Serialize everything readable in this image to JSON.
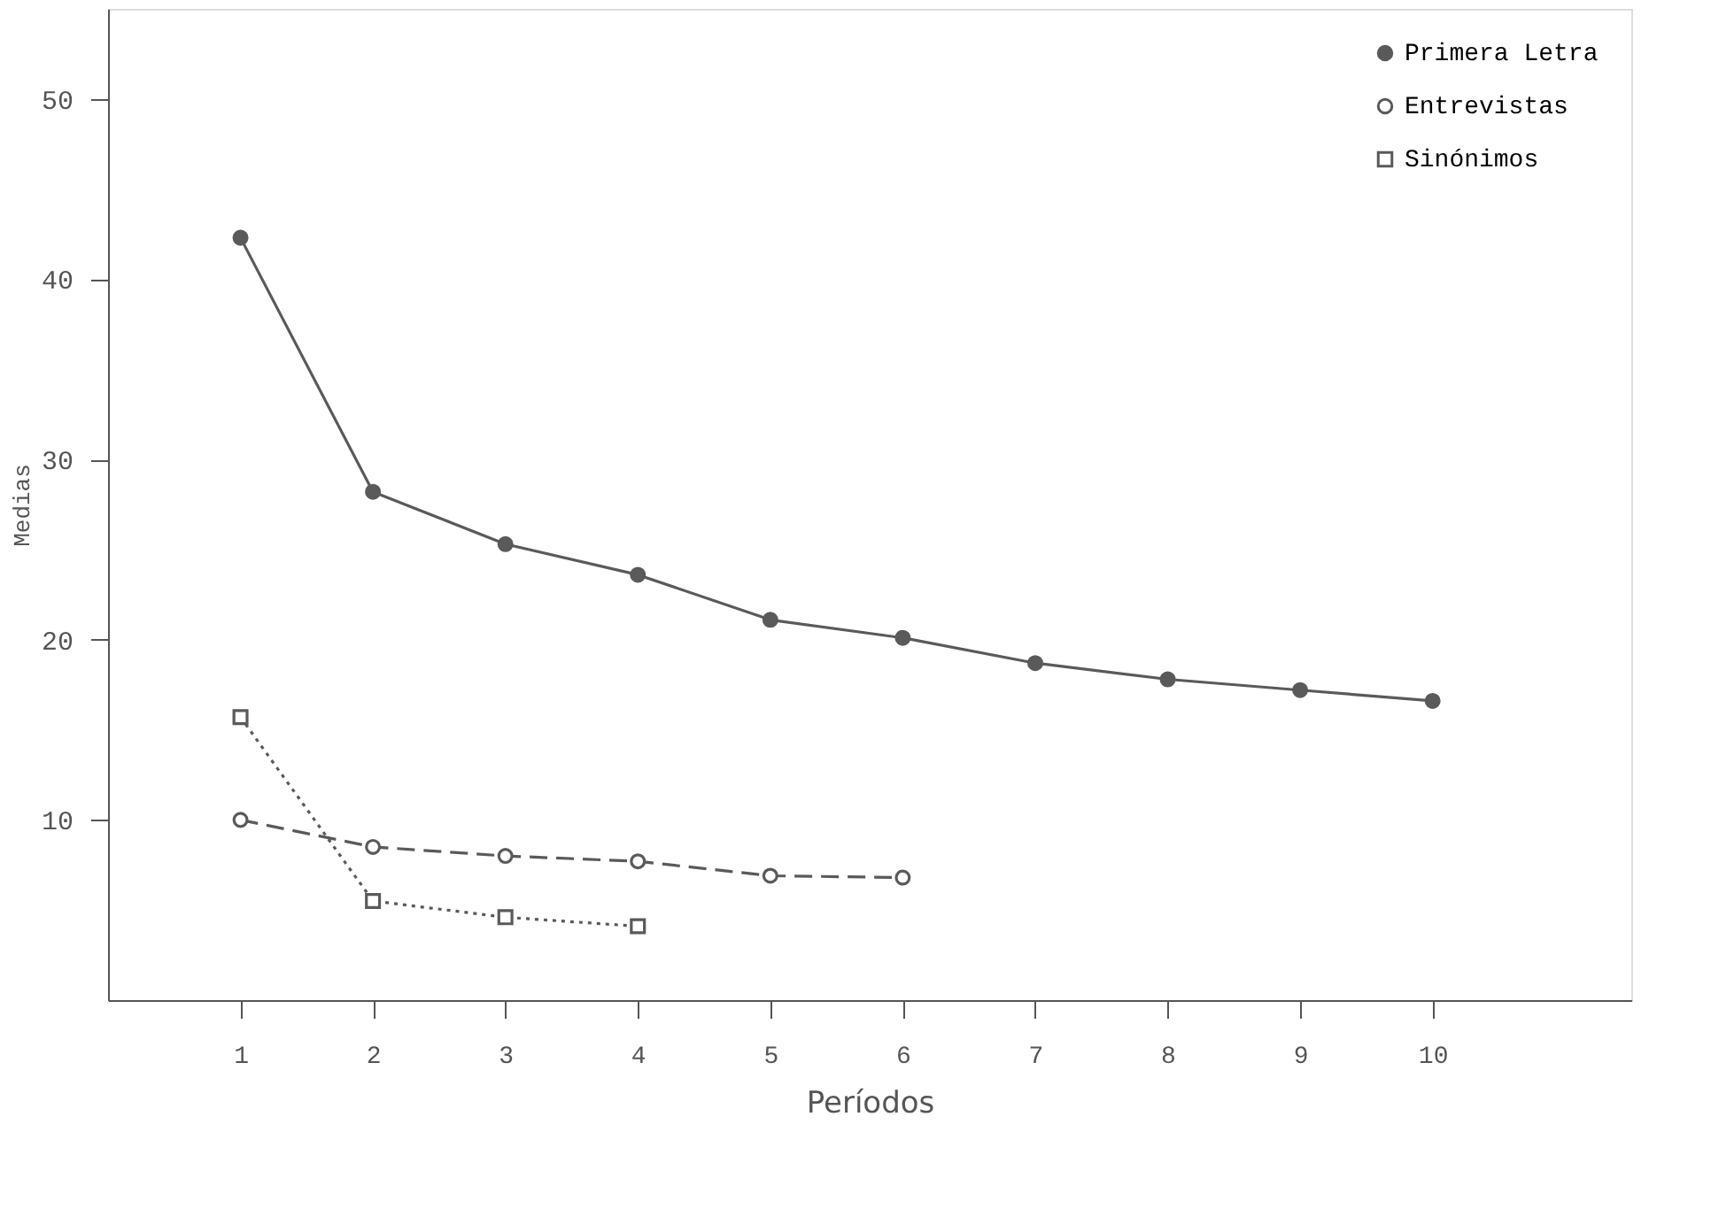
{
  "chart_data": {
    "type": "line",
    "xlabel": "Períodos",
    "ylabel": "Medias",
    "x": [
      1,
      2,
      3,
      4,
      5,
      6,
      7,
      8,
      9,
      10
    ],
    "series": [
      {
        "name": "Primera Letra",
        "color": "#5a5a5a",
        "marker": "circle",
        "line_style": "solid",
        "values": [
          42.3,
          28.2,
          25.3,
          23.6,
          21.1,
          20.1,
          18.7,
          17.8,
          17.2,
          16.6
        ]
      },
      {
        "name": "Entrevistas",
        "color": "#5a5a5a",
        "marker": "circle",
        "line_style": "dashed",
        "values": [
          10.0,
          8.5,
          8.0,
          7.7,
          6.9,
          6.8,
          null,
          null,
          null,
          null
        ]
      },
      {
        "name": "Sinónimos",
        "color": "#5a5a5a",
        "marker": "square",
        "line_style": "dotted",
        "values": [
          15.7,
          5.5,
          4.6,
          4.1,
          null,
          null,
          null,
          null,
          null,
          null
        ]
      }
    ],
    "xlim": [
      0,
      11.5
    ],
    "ylim": [
      0,
      55
    ],
    "xticks": [
      1,
      2,
      3,
      4,
      5,
      6,
      7,
      8,
      9,
      10
    ],
    "yticks": [
      10,
      20,
      30,
      40,
      50
    ],
    "grid": false,
    "legend": "top right"
  }
}
